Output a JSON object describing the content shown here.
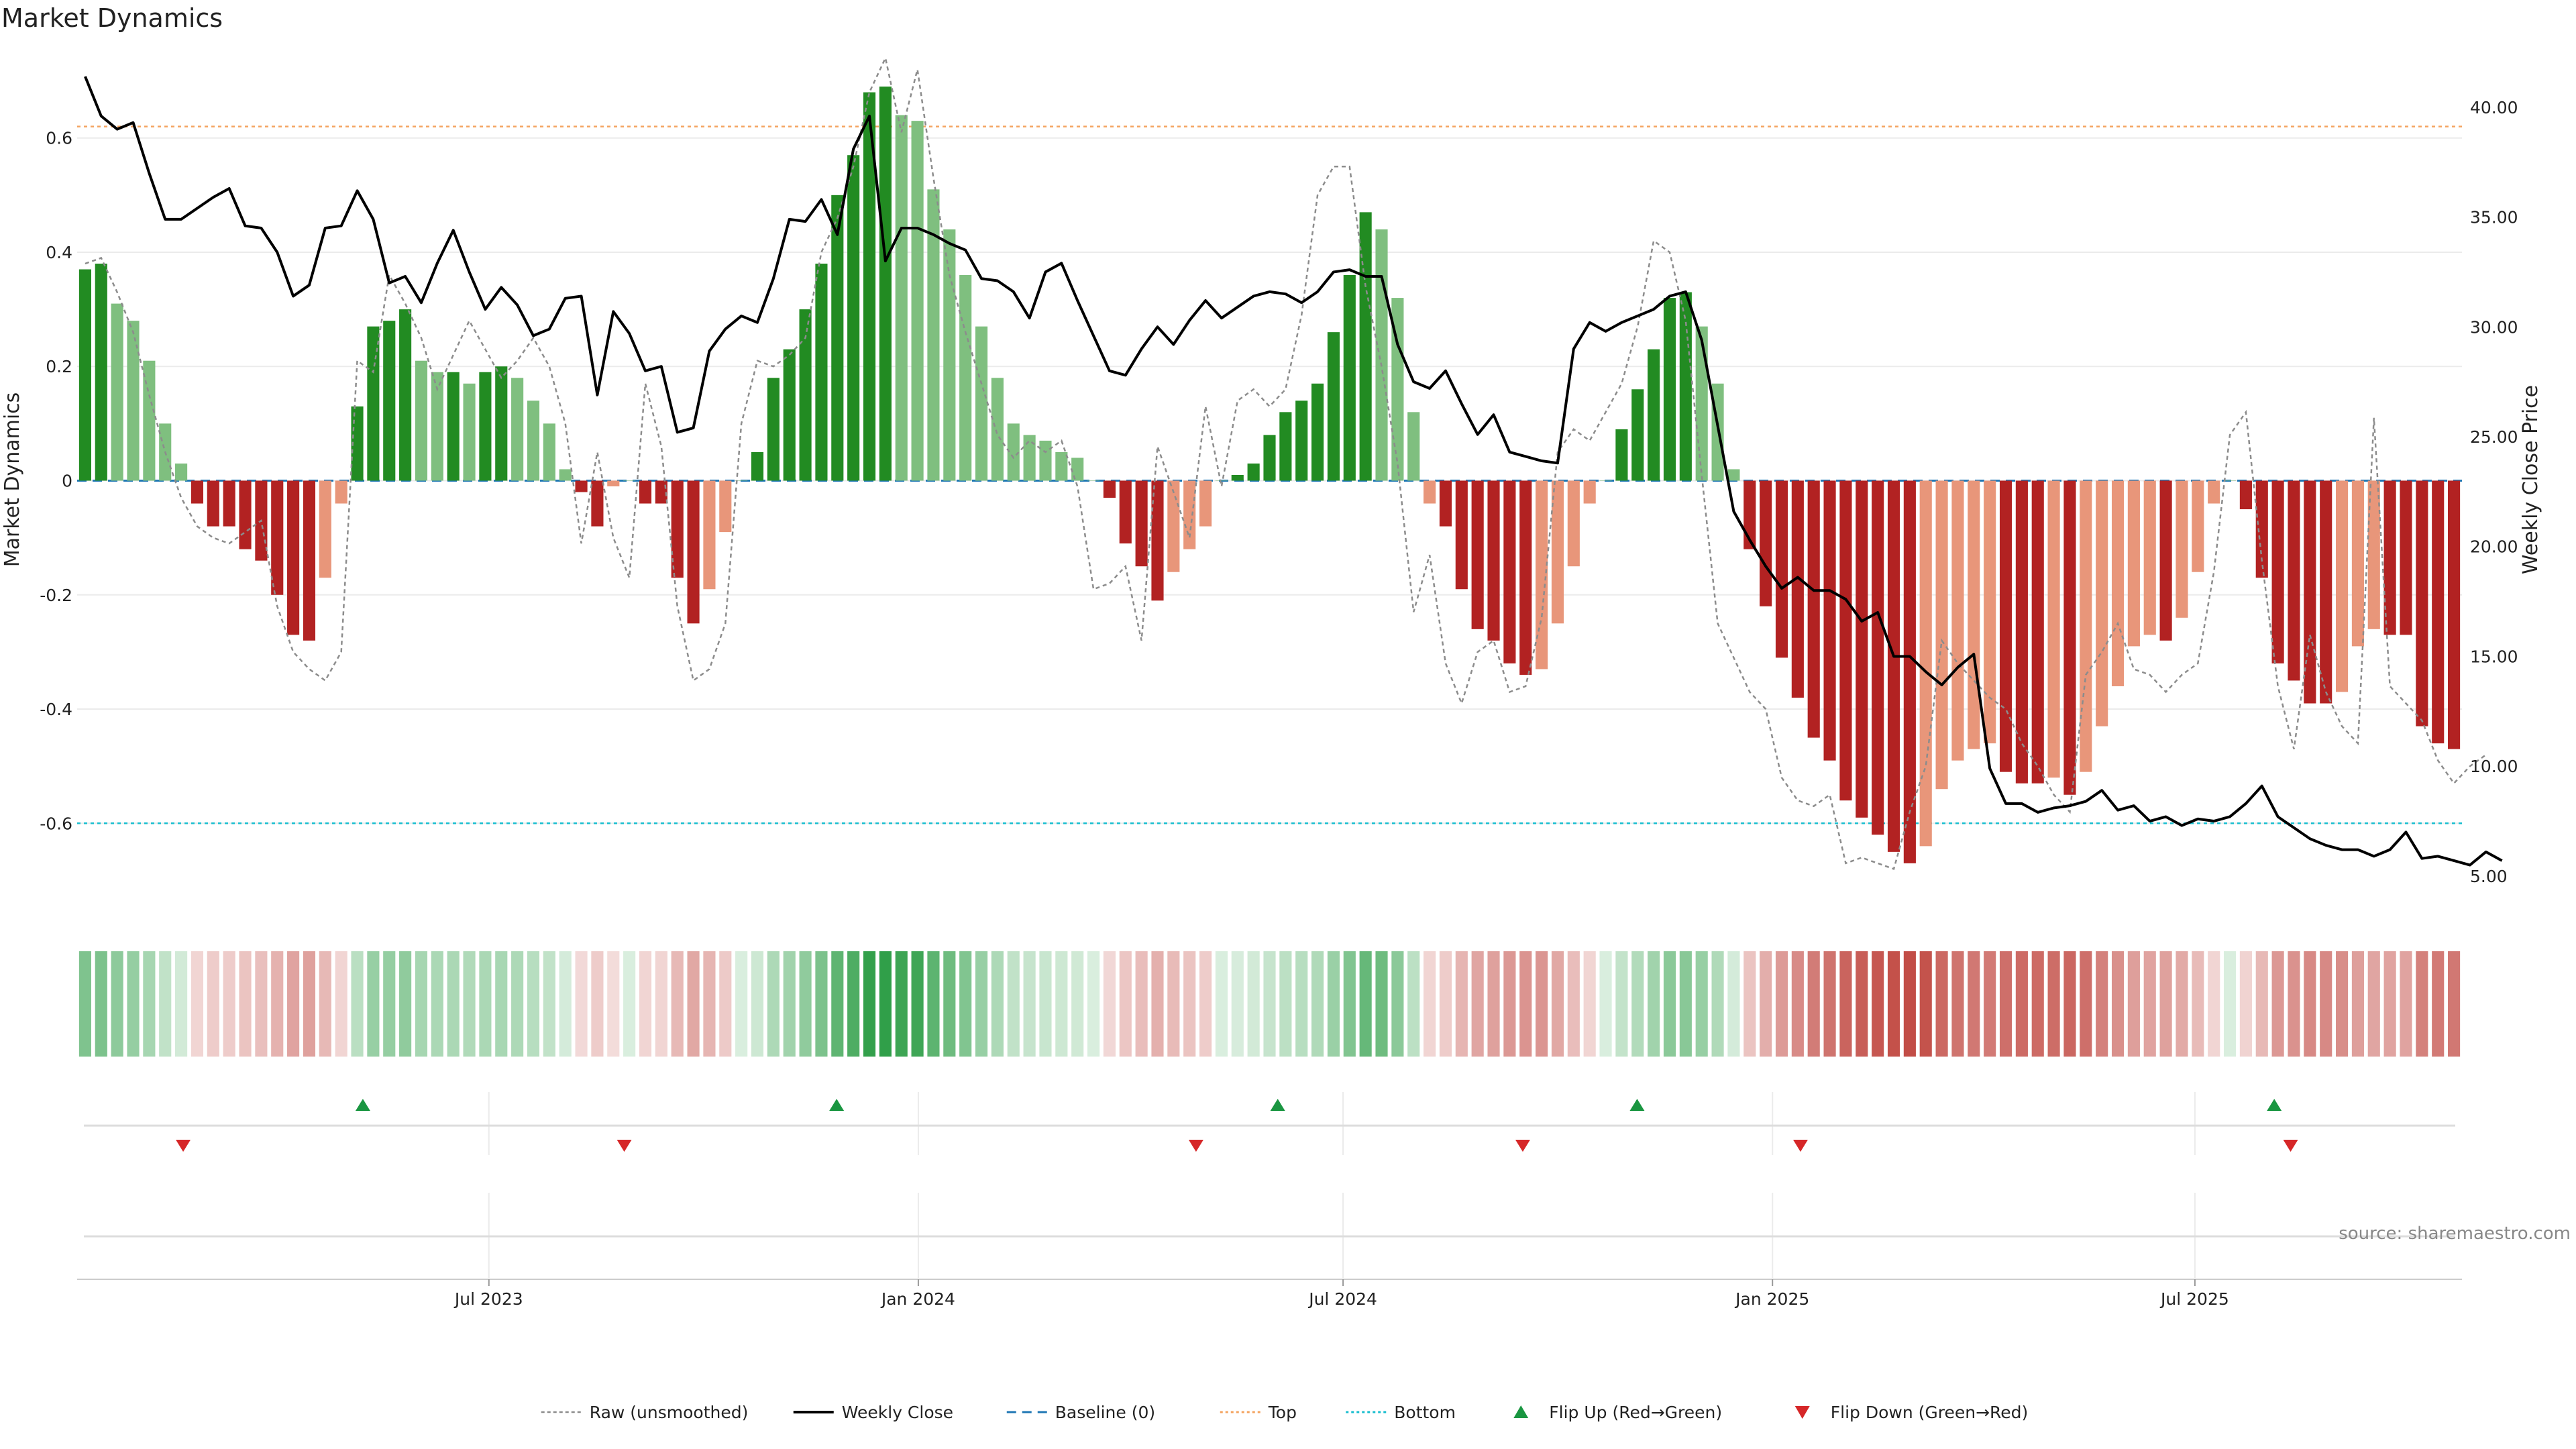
{
  "title": "Market Dynamics",
  "source": "source: sharemaestro.com",
  "colors": {
    "green_strong": "#228b22",
    "green_weak": "#7fbf7f",
    "red_strong": "#b22222",
    "red_weak": "#e8967a",
    "price_line": "#000000",
    "raw_line": "#8c8c8c",
    "baseline": "#1f77b4",
    "top": "#f4a460",
    "bottom": "#17becf",
    "flip_up": "#1a9641",
    "flip_down": "#d62728"
  },
  "chart_data": {
    "type": "bar",
    "title": "Market Dynamics",
    "ylabel_left": "Market Dynamics",
    "ylabel_right": "Weekly Close Price",
    "ylim_left": [
      -0.75,
      0.75
    ],
    "ylim_right": [
      3.5,
      42.5
    ],
    "yticks_left": [
      "-0.6",
      "-0.4",
      "-0.2",
      "0",
      "0.2",
      "0.4",
      "0.6"
    ],
    "yticks_right": [
      "5.00",
      "10.00",
      "15.00",
      "20.00",
      "25.00",
      "30.00",
      "35.00",
      "40.00"
    ],
    "x_start": "2023-01-09",
    "x_end": "2025-10-20",
    "xticks": [
      {
        "date": "2023-07-01",
        "label": "Jul 2023"
      },
      {
        "date": "2024-01-01",
        "label": "Jan 2024"
      },
      {
        "date": "2024-07-01",
        "label": "Jul 2024"
      },
      {
        "date": "2025-01-01",
        "label": "Jan 2025"
      },
      {
        "date": "2025-07-01",
        "label": "Jul 2025"
      }
    ],
    "top_level": 0.62,
    "bottom_level": -0.6,
    "baseline": 0,
    "grid": true,
    "legend_position": "bottom",
    "momentum": [
      0.37,
      0.38,
      0.31,
      0.28,
      0.21,
      0.1,
      0.03,
      -0.04,
      -0.08,
      -0.08,
      -0.12,
      -0.14,
      -0.2,
      -0.27,
      -0.28,
      -0.17,
      -0.04,
      0.13,
      0.27,
      0.28,
      0.3,
      0.21,
      0.19,
      0.19,
      0.17,
      0.19,
      0.2,
      0.18,
      0.14,
      0.1,
      0.02,
      -0.02,
      -0.08,
      -0.01,
      0.0,
      -0.04,
      -0.04,
      -0.17,
      -0.25,
      -0.19,
      -0.09,
      0.0,
      0.05,
      0.18,
      0.23,
      0.3,
      0.38,
      0.5,
      0.57,
      0.68,
      0.69,
      0.64,
      0.63,
      0.51,
      0.44,
      0.36,
      0.27,
      0.18,
      0.1,
      0.08,
      0.07,
      0.05,
      0.04,
      0.0,
      -0.03,
      -0.11,
      -0.15,
      -0.21,
      -0.16,
      -0.12,
      -0.08,
      0.0,
      0.01,
      0.03,
      0.08,
      0.12,
      0.14,
      0.17,
      0.26,
      0.36,
      0.47,
      0.44,
      0.32,
      0.12,
      -0.04,
      -0.08,
      -0.19,
      -0.26,
      -0.28,
      -0.32,
      -0.34,
      -0.33,
      -0.25,
      -0.15,
      -0.04,
      0.0,
      0.09,
      0.16,
      0.23,
      0.32,
      0.33,
      0.27,
      0.17,
      0.02,
      -0.12,
      -0.22,
      -0.31,
      -0.38,
      -0.45,
      -0.49,
      -0.56,
      -0.59,
      -0.62,
      -0.65,
      -0.67,
      -0.64,
      -0.54,
      -0.49,
      -0.47,
      -0.46,
      -0.51,
      -0.53,
      -0.53,
      -0.52,
      -0.55,
      -0.51,
      -0.43,
      -0.36,
      -0.29,
      -0.27,
      -0.28,
      -0.24,
      -0.16,
      -0.04,
      0.0,
      -0.05,
      -0.17,
      -0.32,
      -0.35,
      -0.39,
      -0.39,
      -0.37,
      -0.29,
      -0.26,
      -0.27,
      -0.27,
      -0.43,
      -0.46,
      -0.47
    ],
    "raw_unsmoothed": [
      0.38,
      0.39,
      0.33,
      0.26,
      0.15,
      0.05,
      -0.03,
      -0.08,
      -0.1,
      -0.11,
      -0.09,
      -0.07,
      -0.22,
      -0.3,
      -0.33,
      -0.35,
      -0.3,
      0.21,
      0.19,
      0.36,
      0.31,
      0.25,
      0.16,
      0.22,
      0.28,
      0.23,
      0.18,
      0.21,
      0.25,
      0.2,
      0.1,
      -0.11,
      0.05,
      -0.1,
      -0.17,
      0.17,
      0.06,
      -0.22,
      -0.35,
      -0.33,
      -0.25,
      0.1,
      0.21,
      0.2,
      0.22,
      0.25,
      0.4,
      0.46,
      0.55,
      0.68,
      0.74,
      0.61,
      0.72,
      0.53,
      0.36,
      0.26,
      0.17,
      0.08,
      0.04,
      0.07,
      0.05,
      0.07,
      -0.01,
      -0.19,
      -0.18,
      -0.15,
      -0.28,
      0.06,
      -0.02,
      -0.1,
      0.13,
      -0.01,
      0.14,
      0.16,
      0.13,
      0.16,
      0.29,
      0.5,
      0.55,
      0.55,
      0.34,
      0.2,
      0.03,
      -0.23,
      -0.13,
      -0.32,
      -0.39,
      -0.3,
      -0.28,
      -0.37,
      -0.36,
      -0.24,
      0.05,
      0.09,
      0.07,
      0.12,
      0.17,
      0.27,
      0.42,
      0.4,
      0.28,
      0.01,
      -0.25,
      -0.31,
      -0.37,
      -0.4,
      -0.52,
      -0.56,
      -0.57,
      -0.55,
      -0.67,
      -0.66,
      -0.67,
      -0.68,
      -0.58,
      -0.5,
      -0.28,
      -0.32,
      -0.35,
      -0.38,
      -0.4,
      -0.46,
      -0.5,
      -0.55,
      -0.58,
      -0.34,
      -0.3,
      -0.25,
      -0.33,
      -0.34,
      -0.37,
      -0.34,
      -0.32,
      -0.16,
      0.08,
      0.12,
      -0.14,
      -0.36,
      -0.47,
      -0.27,
      -0.37,
      -0.43,
      -0.46,
      0.11,
      -0.36,
      -0.39,
      -0.42,
      -0.49,
      -0.53,
      -0.5,
      -0.48
    ],
    "weekly_close": [
      41.4,
      39.6,
      39.0,
      39.3,
      37.0,
      34.9,
      34.9,
      35.4,
      35.9,
      36.3,
      34.6,
      34.5,
      33.4,
      31.4,
      31.9,
      34.5,
      34.6,
      36.2,
      34.9,
      32.0,
      32.3,
      31.1,
      32.9,
      34.4,
      32.5,
      30.8,
      31.8,
      31.0,
      29.6,
      29.9,
      31.3,
      31.4,
      26.9,
      30.7,
      29.7,
      28.0,
      28.2,
      25.2,
      25.4,
      28.9,
      29.9,
      30.5,
      30.2,
      32.2,
      34.9,
      34.8,
      35.8,
      34.2,
      38.1,
      39.6,
      33.0,
      34.5,
      34.5,
      34.2,
      33.8,
      33.5,
      32.2,
      32.1,
      31.6,
      30.4,
      32.5,
      32.9,
      31.2,
      29.6,
      28.0,
      27.8,
      29.0,
      30.0,
      29.2,
      30.3,
      31.2,
      30.4,
      30.9,
      31.4,
      31.6,
      31.5,
      31.1,
      31.6,
      32.5,
      32.6,
      32.3,
      32.3,
      29.2,
      27.5,
      27.2,
      28.0,
      26.5,
      25.1,
      26.0,
      24.3,
      24.1,
      23.9,
      23.8,
      29.0,
      30.2,
      29.8,
      30.2,
      30.5,
      30.8,
      31.4,
      31.6,
      29.4,
      25.5,
      21.6,
      20.3,
      19.1,
      18.1,
      18.6,
      18.0,
      18.0,
      17.6,
      16.6,
      17.0,
      15.0,
      15.0,
      14.3,
      13.7,
      14.5,
      15.1,
      9.9,
      8.3,
      8.3,
      7.9,
      8.1,
      8.2,
      8.4,
      8.9,
      8.0,
      8.2,
      7.5,
      7.7,
      7.3,
      7.6,
      7.5,
      7.7,
      8.3,
      9.1,
      7.7,
      7.2,
      6.7,
      6.4,
      6.2,
      6.2,
      5.9,
      6.2,
      7.0,
      5.8,
      5.9,
      5.7,
      5.5,
      6.1,
      5.7
    ],
    "flips_up": [
      "2023-05-08",
      "2023-11-27",
      "2024-06-03",
      "2024-11-04",
      "2025-08-04"
    ],
    "flips_down": [
      "2023-02-20",
      "2023-08-28",
      "2024-04-29",
      "2024-09-16",
      "2025-01-13",
      "2025-08-11"
    ],
    "series": [
      {
        "name": "Raw (unsmoothed)"
      },
      {
        "name": "Weekly Close"
      },
      {
        "name": "Baseline (0)"
      },
      {
        "name": "Top"
      },
      {
        "name": "Bottom"
      },
      {
        "name": "Flip Up (Red→Green)"
      },
      {
        "name": "Flip Down (Green→Red)"
      }
    ]
  },
  "legend": [
    {
      "label": "Raw (unsmoothed)",
      "icon": "dotted-gray-line"
    },
    {
      "label": "Weekly Close",
      "icon": "black-line"
    },
    {
      "label": "Baseline (0)",
      "icon": "dashed-blue-line"
    },
    {
      "label": "Top",
      "icon": "dotted-orange-line"
    },
    {
      "label": "Bottom",
      "icon": "dotted-cyan-line"
    },
    {
      "label": "Flip Up (Red→Green)",
      "icon": "green-up-triangle"
    },
    {
      "label": "Flip Down (Green→Red)",
      "icon": "red-down-triangle"
    }
  ]
}
